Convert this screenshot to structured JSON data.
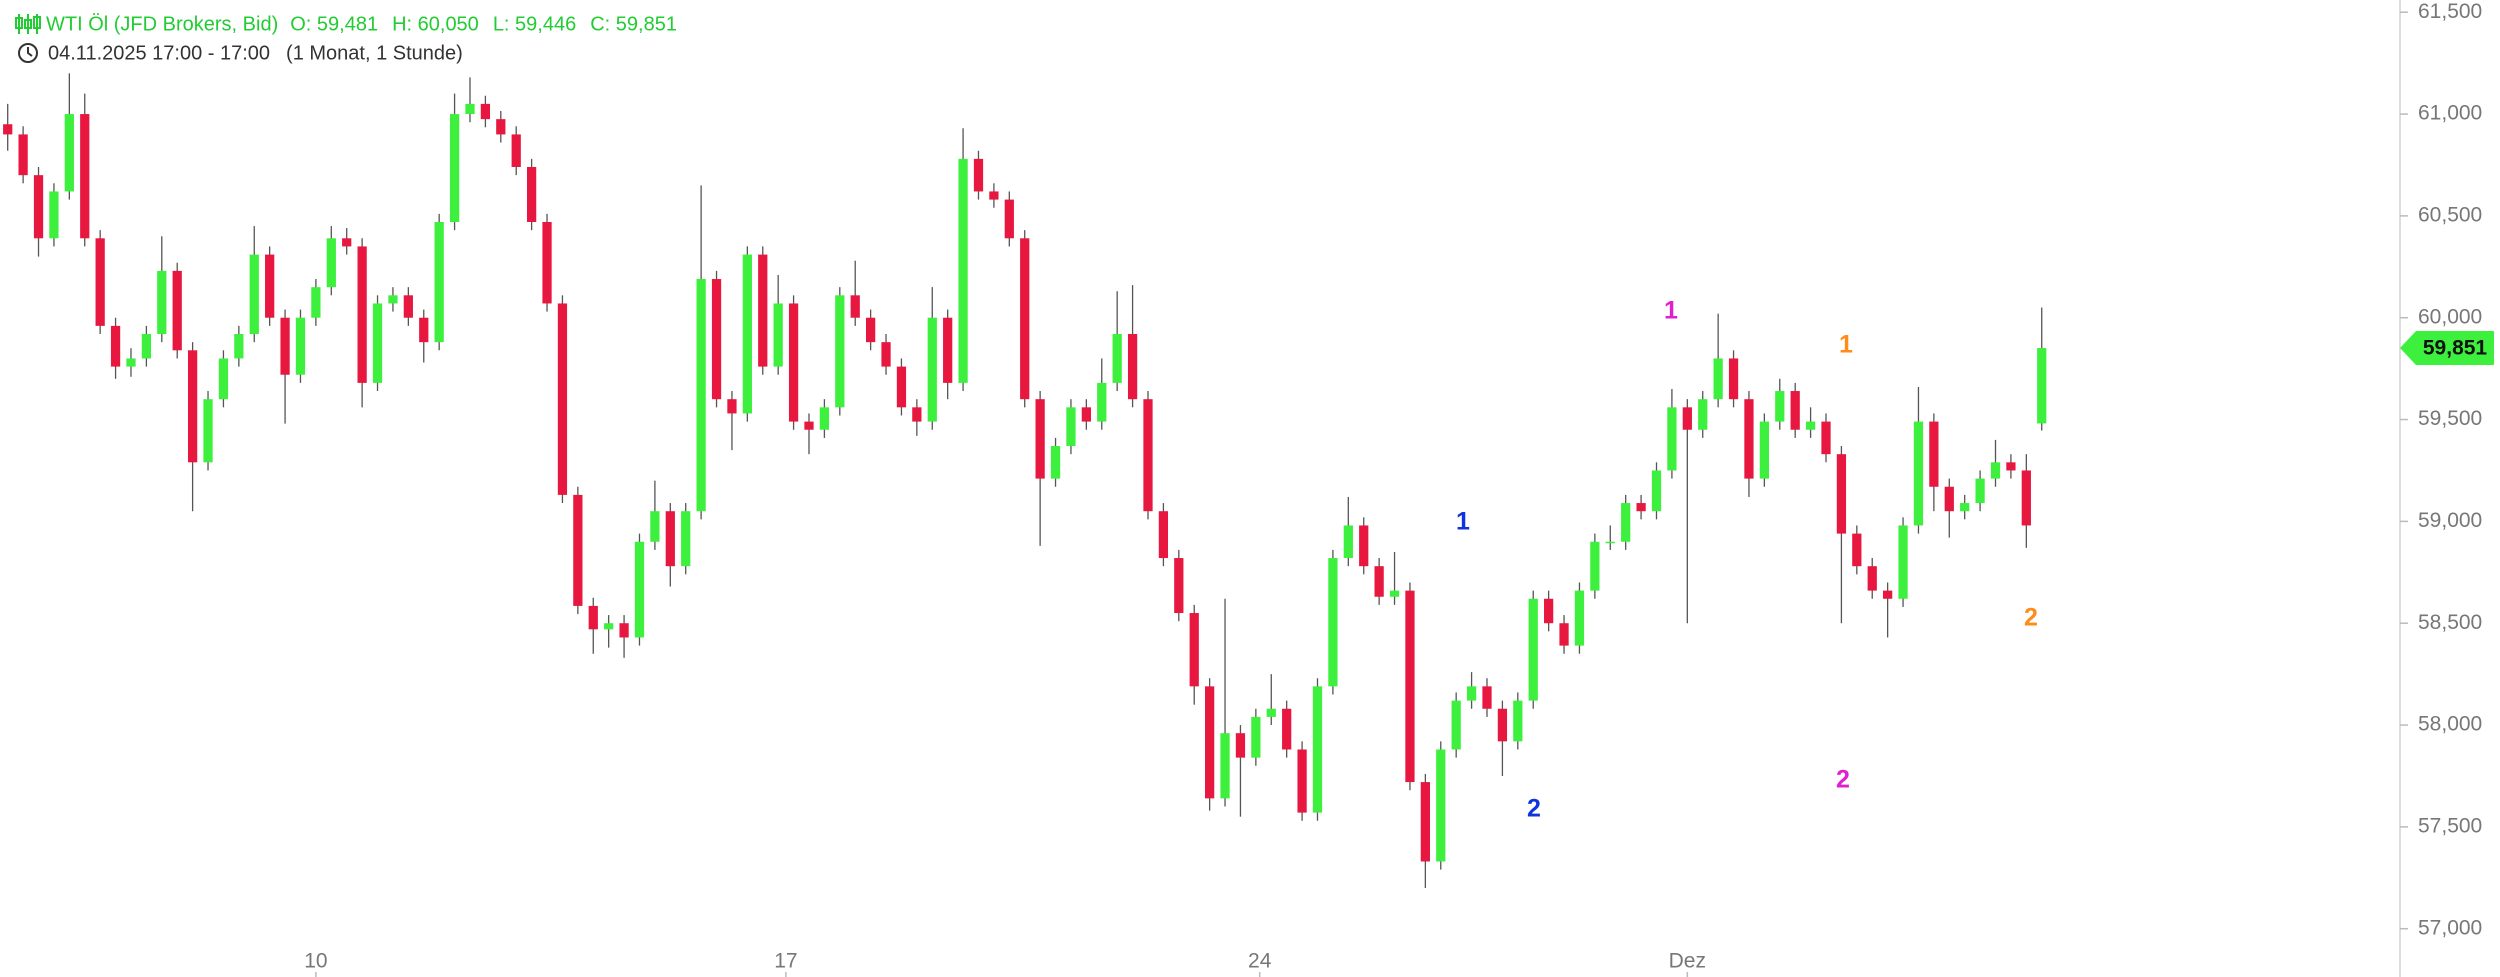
{
  "chart_data": {
    "type": "candlestick",
    "title": "WTI Öl (JFD Brokers, Bid)",
    "ohlc_labels": [
      "O: 59,481",
      "H: 60,050",
      "L: 59,446",
      "C: 59,851"
    ],
    "subtitle": "04.11.2025 17:00 - 17:00",
    "period": "(1 Monat, 1 Stunde)",
    "up_color": "#3df03d",
    "down_color": "#e8173f",
    "wick_color": "#555555",
    "x": [
      0,
      4,
      8,
      12,
      16,
      20,
      24,
      28,
      32,
      36,
      40,
      44,
      48,
      52,
      56,
      60,
      64,
      68,
      72,
      76,
      80,
      84,
      88,
      92,
      96,
      100,
      104,
      108,
      112,
      116,
      120,
      124,
      128,
      132,
      136,
      140,
      144,
      148,
      152,
      156,
      160,
      164,
      168,
      172,
      176,
      180,
      184,
      188,
      192,
      196,
      200,
      204,
      208,
      212,
      216,
      220,
      224,
      228,
      232,
      236,
      240,
      244,
      248,
      252,
      256,
      260,
      264,
      268,
      272,
      276,
      280,
      284,
      288,
      292,
      296,
      300,
      304,
      308,
      312,
      316,
      320,
      324,
      328,
      332,
      336,
      340,
      344,
      348,
      352,
      356,
      360,
      364,
      368,
      372,
      376,
      380,
      384,
      388,
      392,
      396,
      400,
      404,
      408,
      412,
      416,
      420,
      424,
      428,
      432,
      436,
      440,
      444,
      448,
      452,
      456,
      460,
      464,
      468,
      472,
      476,
      480,
      484,
      488,
      492,
      496,
      500,
      504,
      508,
      512,
      516,
      520,
      524,
      528
    ],
    "open": [
      60950,
      60900,
      60700,
      60390,
      60620,
      61000,
      60390,
      59960,
      59760,
      59800,
      59920,
      60230,
      59840,
      59290,
      59600,
      59800,
      59920,
      60310,
      60000,
      59720,
      60000,
      60150,
      60390,
      60350,
      59680,
      60070,
      60110,
      60000,
      59880,
      60470,
      61000,
      61050,
      60975,
      60900,
      60740,
      60470,
      60070,
      59130,
      58585,
      58470,
      58500,
      58430,
      58900,
      59050,
      58780,
      59050,
      60190,
      59600,
      59530,
      60310,
      59760,
      60070,
      59490,
      59450,
      59560,
      60110,
      60000,
      59880,
      59760,
      59560,
      59490,
      60000,
      59680,
      60780,
      60620,
      60580,
      60390,
      59600,
      59210,
      59370,
      59560,
      59490,
      59680,
      59920,
      59600,
      59050,
      58820,
      58550,
      58190,
      57640,
      57960,
      57840,
      58040,
      58080,
      57880,
      57570,
      58190,
      58820,
      58980,
      58780,
      58630,
      58660,
      57720,
      57330,
      57880,
      58120,
      58190,
      58080,
      57920,
      58120,
      58620,
      58500,
      58390,
      58660,
      58900,
      58900,
      59090,
      59050,
      59250,
      59560,
      59450,
      59600,
      59800,
      59600,
      59210,
      59490,
      59640,
      59450,
      59490,
      59330,
      58940,
      58780,
      58660,
      58620,
      58980,
      59490,
      59170,
      59050,
      59090,
      59210,
      59290,
      59250,
      59481
    ],
    "high": [
      61050,
      60940,
      60740,
      60660,
      61200,
      61100,
      60430,
      60000,
      59850,
      59960,
      60400,
      60270,
      59880,
      59640,
      59840,
      59960,
      60450,
      60350,
      60040,
      60040,
      60190,
      60450,
      60440,
      60390,
      60110,
      60150,
      60150,
      60040,
      60510,
      61100,
      61180,
      61090,
      61015,
      60940,
      60780,
      60510,
      60110,
      59170,
      58625,
      58540,
      58540,
      58940,
      59200,
      59090,
      59090,
      60650,
      60230,
      59640,
      60350,
      60350,
      60210,
      60110,
      59530,
      59600,
      60150,
      60280,
      60040,
      59920,
      59800,
      59600,
      60150,
      60040,
      60930,
      60820,
      60660,
      60620,
      60430,
      59640,
      59410,
      59600,
      59600,
      59800,
      60130,
      60160,
      59640,
      59090,
      58860,
      58590,
      58230,
      58620,
      58000,
      58080,
      58250,
      58120,
      57920,
      58230,
      58860,
      59120,
      59020,
      58820,
      58850,
      58700,
      57760,
      57920,
      58160,
      58260,
      58230,
      58120,
      58160,
      58660,
      58660,
      58540,
      58700,
      58940,
      58980,
      59130,
      59130,
      59290,
      59650,
      59600,
      59640,
      60020,
      59840,
      59640,
      59530,
      59700,
      59680,
      59560,
      59530,
      59370,
      58980,
      58820,
      58700,
      59020,
      59660,
      59530,
      59210,
      59130,
      59250,
      59400,
      59330,
      59330,
      60050
    ],
    "low": [
      60820,
      60660,
      60300,
      60350,
      60580,
      60350,
      59920,
      59700,
      59710,
      59760,
      59880,
      59800,
      59050,
      59250,
      59560,
      59760,
      59880,
      59960,
      59480,
      59680,
      59960,
      60110,
      60310,
      59560,
      59640,
      60030,
      59960,
      59780,
      59840,
      60430,
      60960,
      60935,
      60860,
      60700,
      60430,
      60030,
      59090,
      58545,
      58350,
      58380,
      58330,
      58390,
      58860,
      58680,
      58740,
      59010,
      59560,
      59350,
      59490,
      59720,
      59720,
      59450,
      59330,
      59410,
      59520,
      59960,
      59840,
      59720,
      59520,
      59420,
      59450,
      59600,
      59640,
      60580,
      60540,
      60350,
      59560,
      58880,
      59170,
      59330,
      59450,
      59450,
      59640,
      59560,
      59010,
      58780,
      58510,
      58100,
      57580,
      57600,
      57550,
      57800,
      58000,
      57840,
      57530,
      57530,
      58150,
      58780,
      58740,
      58590,
      58590,
      57680,
      57200,
      57290,
      57840,
      58080,
      58040,
      57750,
      57880,
      58080,
      58460,
      58350,
      58350,
      58620,
      58860,
      58860,
      59010,
      59010,
      59210,
      58500,
      59410,
      59560,
      59560,
      59120,
      59170,
      59450,
      59410,
      59410,
      59290,
      58500,
      58740,
      58620,
      58430,
      58580,
      58940,
      59050,
      58920,
      59010,
      59050,
      59170,
      59210,
      58870,
      59446
    ],
    "close": [
      60900,
      60700,
      60390,
      60620,
      61000,
      60390,
      59960,
      59760,
      59800,
      59920,
      60230,
      59840,
      59290,
      59600,
      59800,
      59920,
      60310,
      60000,
      59720,
      60000,
      60150,
      60390,
      60350,
      59680,
      60070,
      60110,
      60000,
      59880,
      60470,
      61000,
      61050,
      60975,
      60900,
      60740,
      60470,
      60070,
      59130,
      58585,
      58470,
      58500,
      58430,
      58900,
      59050,
      58780,
      59050,
      60190,
      59600,
      59530,
      60310,
      59760,
      60070,
      59490,
      59450,
      59560,
      60110,
      60000,
      59880,
      59760,
      59560,
      59490,
      60000,
      59680,
      60780,
      60620,
      60580,
      60390,
      59600,
      59210,
      59370,
      59560,
      59490,
      59680,
      59920,
      59600,
      59050,
      58820,
      58550,
      58190,
      57640,
      57960,
      57840,
      58040,
      58080,
      57880,
      57570,
      58190,
      58820,
      58980,
      58780,
      58630,
      58660,
      57720,
      57330,
      57880,
      58120,
      58190,
      58080,
      57920,
      58120,
      58620,
      58500,
      58390,
      58660,
      58900,
      58900,
      59090,
      59050,
      59250,
      59560,
      59450,
      59600,
      59800,
      59600,
      59210,
      59490,
      59640,
      59450,
      59490,
      59330,
      58940,
      58780,
      58660,
      58620,
      58980,
      59490,
      59170,
      59050,
      59090,
      59210,
      59290,
      59250,
      58980,
      59851
    ],
    "xlim": [
      -2,
      621
    ],
    "xticks": [
      {
        "value": 80,
        "label": "10"
      },
      {
        "value": 202,
        "label": "17"
      },
      {
        "value": 325,
        "label": "24"
      },
      {
        "value": 436,
        "label": "Dez"
      }
    ],
    "ylim": [
      56920,
      61560
    ],
    "yticks": [
      {
        "value": 57000,
        "label": "57,000"
      },
      {
        "value": 57500,
        "label": "57,500"
      },
      {
        "value": 58000,
        "label": "58,000"
      },
      {
        "value": 58500,
        "label": "58,500"
      },
      {
        "value": 59000,
        "label": "59,000"
      },
      {
        "value": 59500,
        "label": "59,500"
      },
      {
        "value": 60000,
        "label": "60,000"
      },
      {
        "value": 60500,
        "label": "60,500"
      },
      {
        "value": 61000,
        "label": "61,000"
      },
      {
        "value": 61500,
        "label": "61,500"
      }
    ],
    "last_price": {
      "value": 59851,
      "label": "59,851"
    },
    "last_price_color": "#3df03d",
    "annotations": [
      {
        "text": "1",
        "color": "#1133dd"
      },
      {
        "text": "2",
        "color": "#1133dd"
      },
      {
        "text": "1",
        "color": "#e020d0"
      },
      {
        "text": "2",
        "color": "#e020d0"
      },
      {
        "text": "1",
        "color": "#ff8c1a"
      },
      {
        "text": "2",
        "color": "#ff8c1a"
      }
    ]
  }
}
